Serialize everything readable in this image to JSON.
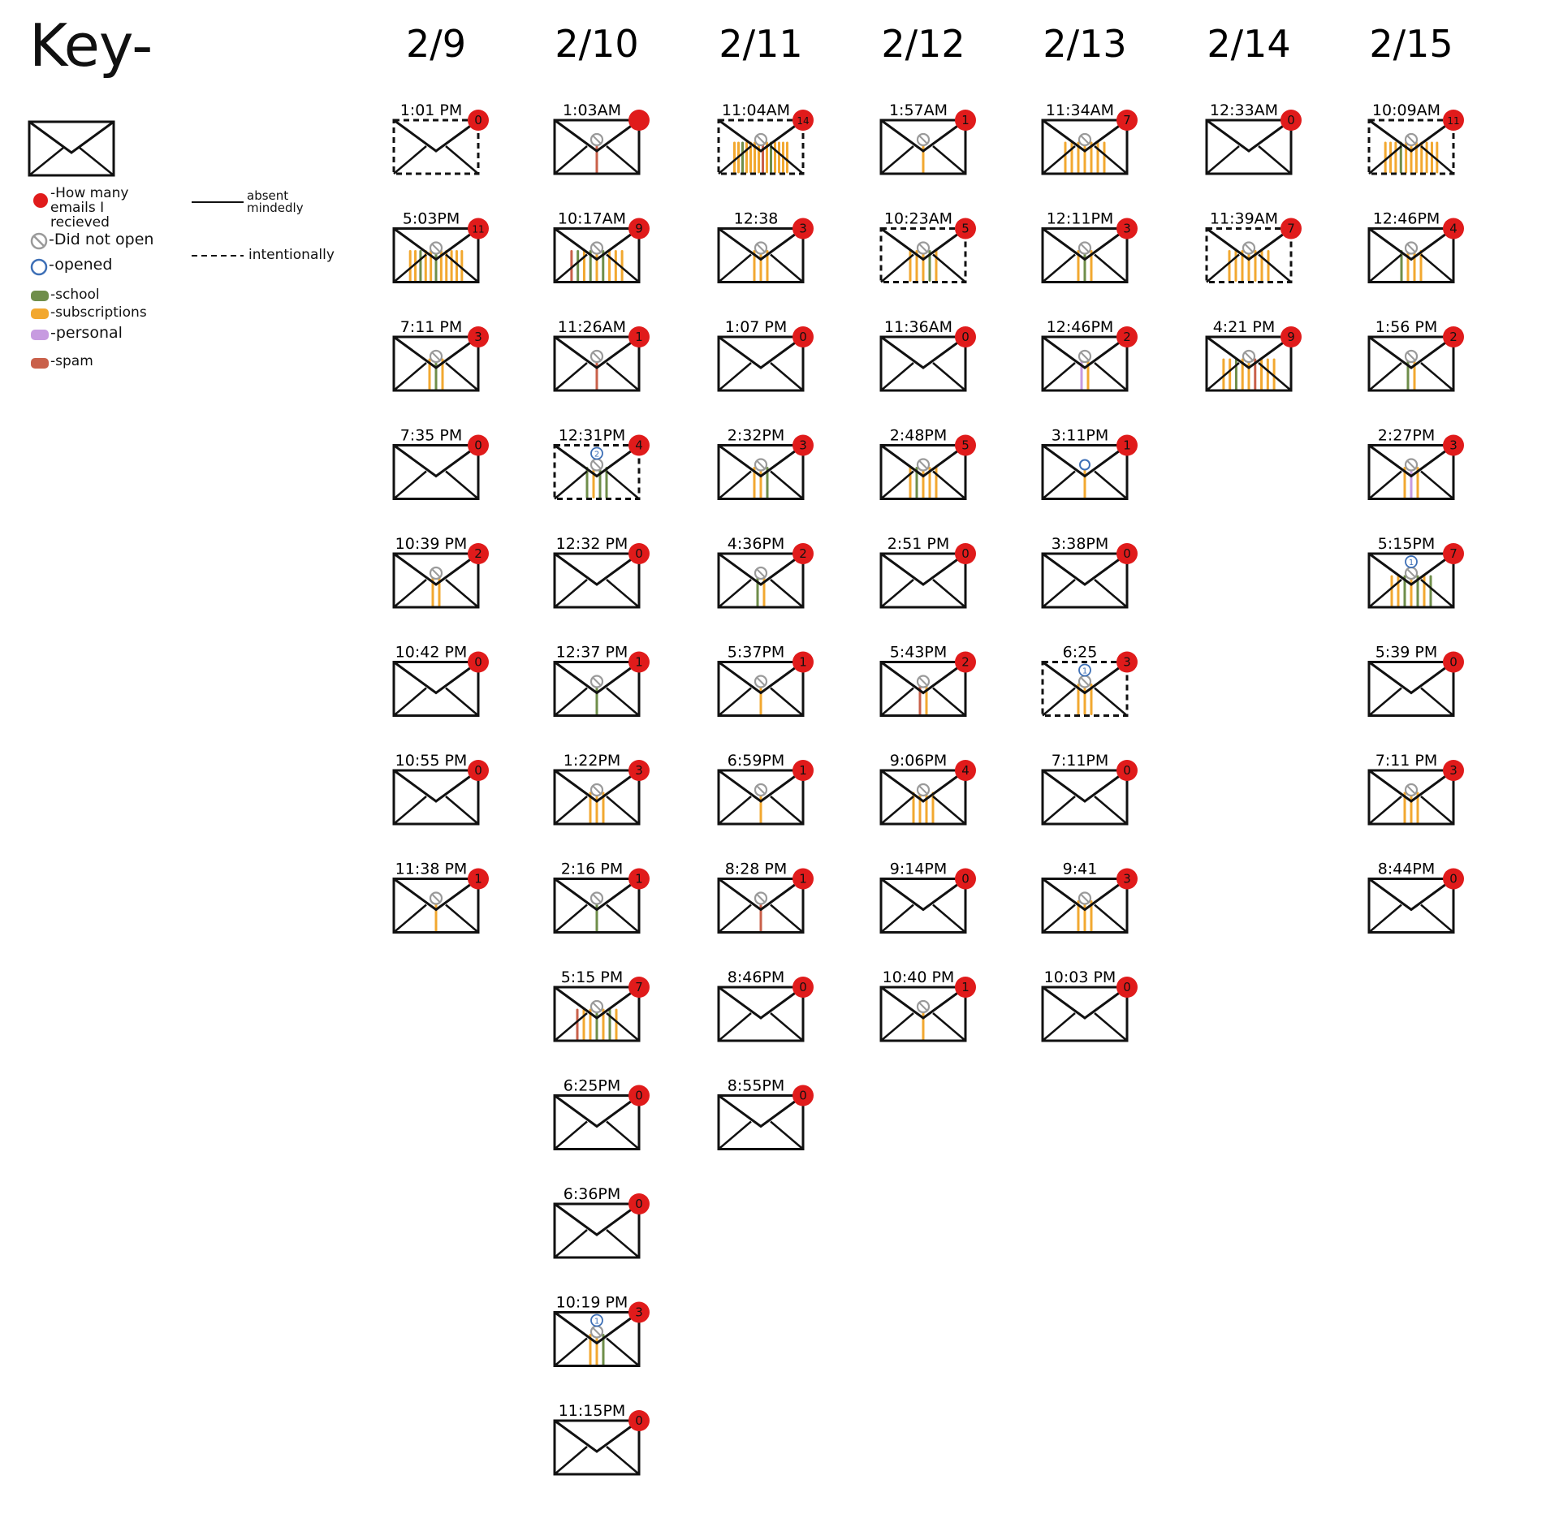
{
  "key": {
    "title": "Key-",
    "count_label": "-How many emails I recieved",
    "did_not_open_label": "-Did not open",
    "opened_label": "-opened",
    "school_label": "-school",
    "subscriptions_label": "-subscriptions",
    "personal_label": "-personal",
    "spam_label": "-spam",
    "absent_label": "absent mindedly",
    "intentional_label": "intentionally"
  },
  "colors": {
    "badge": "#e01b1b",
    "school": "#6f8e4a",
    "subscriptions": "#f2a830",
    "personal": "#c79be0",
    "spam": "#c9604a",
    "not_open": "#9a9a9a",
    "opened": "#3d6fb6"
  },
  "chart_data": {
    "type": "table",
    "days": [
      {
        "date": "2/9",
        "checks": [
          {
            "time": "1:01 PM",
            "count": 0,
            "style": "intentional",
            "lines": []
          },
          {
            "time": "5:03PM",
            "count": 11,
            "style": "absent",
            "lines": [
              "sub",
              "sub",
              "school",
              "sub",
              "sub",
              "school",
              "sub",
              "sub",
              "sub",
              "sub",
              "sub"
            ]
          },
          {
            "time": "7:11 PM",
            "count": 3,
            "style": "absent",
            "lines": [
              "sub",
              "school",
              "sub"
            ]
          },
          {
            "time": "7:35 PM",
            "count": 0,
            "style": "absent",
            "lines": []
          },
          {
            "time": "10:39 PM",
            "count": 2,
            "style": "absent",
            "lines": [
              "sub",
              "sub"
            ]
          },
          {
            "time": "10:42 PM",
            "count": 0,
            "style": "absent",
            "lines": []
          },
          {
            "time": "10:55 PM",
            "count": 0,
            "style": "absent",
            "lines": []
          },
          {
            "time": "11:38 PM",
            "count": 1,
            "style": "absent",
            "lines": [
              "sub"
            ]
          }
        ]
      },
      {
        "date": "2/10",
        "checks": [
          {
            "time": "1:03AM",
            "count": "",
            "style": "absent",
            "lines": [
              "spam"
            ]
          },
          {
            "time": "10:17AM",
            "count": 9,
            "style": "absent",
            "lines": [
              "spam",
              "school",
              "sub",
              "school",
              "sub",
              "school",
              "sub",
              "sub",
              "sub"
            ]
          },
          {
            "time": "11:26AM",
            "count": 1,
            "style": "absent",
            "lines": [
              "spam"
            ]
          },
          {
            "time": "12:31PM",
            "count": 4,
            "style": "intentional",
            "opened": "2",
            "lines": [
              "school",
              "sub",
              "school",
              "school"
            ]
          },
          {
            "time": "12:32 PM",
            "count": 0,
            "style": "absent",
            "lines": []
          },
          {
            "time": "12:37 PM",
            "count": 1,
            "style": "absent",
            "lines": [
              "school"
            ]
          },
          {
            "time": "1:22PM",
            "count": 3,
            "style": "absent",
            "lines": [
              "sub",
              "sub",
              "sub"
            ]
          },
          {
            "time": "2:16 PM",
            "count": 1,
            "style": "absent",
            "lines": [
              "school"
            ]
          },
          {
            "time": "5:15 PM",
            "count": 7,
            "style": "absent",
            "lines": [
              "spam",
              "sub",
              "sub",
              "school",
              "sub",
              "school",
              "sub"
            ]
          },
          {
            "time": "6:25PM",
            "count": 0,
            "style": "absent",
            "lines": []
          },
          {
            "time": "6:36PM",
            "count": 0,
            "style": "absent",
            "lines": []
          },
          {
            "time": "10:19 PM",
            "count": 3,
            "style": "absent",
            "opened": "1",
            "lines": [
              "sub",
              "sub",
              "school"
            ]
          },
          {
            "time": "11:15PM",
            "count": 0,
            "style": "absent",
            "lines": []
          }
        ]
      },
      {
        "date": "2/11",
        "checks": [
          {
            "time": "11:04AM",
            "count": 14,
            "style": "intentional",
            "lines": [
              "sub",
              "sub",
              "school",
              "sub",
              "sub",
              "sub",
              "sub",
              "spam",
              "sub",
              "school",
              "sub",
              "sub",
              "sub",
              "sub"
            ]
          },
          {
            "time": "12:38",
            "count": 3,
            "style": "absent",
            "lines": [
              "sub",
              "sub",
              "sub"
            ]
          },
          {
            "time": "1:07 PM",
            "count": 0,
            "style": "absent",
            "lines": []
          },
          {
            "time": "2:32PM",
            "count": 3,
            "style": "absent",
            "lines": [
              "sub",
              "sub",
              "school"
            ]
          },
          {
            "time": "4:36PM",
            "count": 2,
            "style": "absent",
            "lines": [
              "school",
              "sub"
            ]
          },
          {
            "time": "5:37PM",
            "count": 1,
            "style": "absent",
            "lines": [
              "sub"
            ]
          },
          {
            "time": "6:59PM",
            "count": 1,
            "style": "absent",
            "lines": [
              "sub"
            ]
          },
          {
            "time": "8:28 PM",
            "count": 1,
            "style": "absent",
            "lines": [
              "spam"
            ]
          },
          {
            "time": "8:46PM",
            "count": 0,
            "style": "absent",
            "lines": []
          },
          {
            "time": "8:55PM",
            "count": 0,
            "style": "absent",
            "lines": []
          }
        ]
      },
      {
        "date": "2/12",
        "checks": [
          {
            "time": "1:57AM",
            "count": 1,
            "style": "absent",
            "lines": [
              "sub"
            ]
          },
          {
            "time": "10:23AM",
            "count": 5,
            "style": "intentional",
            "lines": [
              "sub",
              "sub",
              "sub",
              "school",
              "sub"
            ]
          },
          {
            "time": "11:36AM",
            "count": 0,
            "style": "absent",
            "lines": []
          },
          {
            "time": "2:48PM",
            "count": 5,
            "style": "absent",
            "lines": [
              "sub",
              "school",
              "sub",
              "sub",
              "sub"
            ]
          },
          {
            "time": "2:51 PM",
            "count": 0,
            "style": "absent",
            "lines": []
          },
          {
            "time": "5:43PM",
            "count": 2,
            "style": "absent",
            "lines": [
              "spam",
              "sub"
            ]
          },
          {
            "time": "9:06PM",
            "count": 4,
            "style": "absent",
            "lines": [
              "sub",
              "sub",
              "sub",
              "sub"
            ]
          },
          {
            "time": "9:14PM",
            "count": 0,
            "style": "absent",
            "lines": []
          },
          {
            "time": "10:40 PM",
            "count": 1,
            "style": "absent",
            "lines": [
              "sub"
            ]
          }
        ]
      },
      {
        "date": "2/13",
        "checks": [
          {
            "time": "11:34AM",
            "count": 7,
            "style": "absent",
            "lines": [
              "sub",
              "sub",
              "sub",
              "sub",
              "sub",
              "sub",
              "sub"
            ]
          },
          {
            "time": "12:11PM",
            "count": 3,
            "style": "absent",
            "lines": [
              "sub",
              "school",
              "sub"
            ]
          },
          {
            "time": "12:46PM",
            "count": 2,
            "style": "absent",
            "lines": [
              "personal",
              "sub"
            ]
          },
          {
            "time": "3:11PM",
            "count": 1,
            "style": "absent",
            "opened_mark": true,
            "lines": [
              "sub"
            ]
          },
          {
            "time": "3:38PM",
            "count": 0,
            "style": "absent",
            "lines": []
          },
          {
            "time": "6:25",
            "count": 3,
            "style": "intentional",
            "opened": "1",
            "lines": [
              "sub",
              "sub",
              "sub"
            ]
          },
          {
            "time": "7:11PM",
            "count": 0,
            "style": "absent",
            "lines": []
          },
          {
            "time": "9:41",
            "count": 3,
            "style": "absent",
            "lines": [
              "sub",
              "sub",
              "sub"
            ]
          },
          {
            "time": "10:03 PM",
            "count": 0,
            "style": "absent",
            "lines": []
          }
        ]
      },
      {
        "date": "2/14",
        "checks": [
          {
            "time": "12:33AM",
            "count": 0,
            "style": "absent",
            "lines": []
          },
          {
            "time": "11:39AM",
            "count": 7,
            "style": "intentional",
            "lines": [
              "sub",
              "sub",
              "sub",
              "sub",
              "sub",
              "sub",
              "sub"
            ]
          },
          {
            "time": "4:21 PM",
            "count": 9,
            "style": "absent",
            "lines": [
              "sub",
              "sub",
              "school",
              "sub",
              "sub",
              "spam",
              "sub",
              "sub",
              "sub"
            ]
          }
        ]
      },
      {
        "date": "2/15",
        "checks": [
          {
            "time": "10:09AM",
            "count": 11,
            "style": "intentional",
            "lines": [
              "sub",
              "sub",
              "sub",
              "school",
              "sub",
              "sub",
              "sub",
              "sub",
              "sub",
              "sub",
              "sub"
            ]
          },
          {
            "time": "12:46PM",
            "count": 4,
            "style": "absent",
            "lines": [
              "school",
              "sub",
              "sub",
              "sub"
            ]
          },
          {
            "time": "1:56 PM",
            "count": 2,
            "style": "absent",
            "lines": [
              "school",
              "sub"
            ]
          },
          {
            "time": "2:27PM",
            "count": 3,
            "style": "absent",
            "lines": [
              "sub",
              "personal",
              "sub"
            ]
          },
          {
            "time": "5:15PM",
            "count": 7,
            "style": "absent",
            "opened": "1",
            "lines": [
              "sub",
              "sub",
              "school",
              "sub",
              "school",
              "sub",
              "school"
            ]
          },
          {
            "time": "5:39 PM",
            "count": 0,
            "style": "absent",
            "lines": []
          },
          {
            "time": "7:11 PM",
            "count": 3,
            "style": "absent",
            "lines": [
              "sub",
              "sub",
              "sub"
            ]
          },
          {
            "time": "8:44PM",
            "count": 0,
            "style": "absent",
            "lines": []
          }
        ]
      }
    ]
  }
}
